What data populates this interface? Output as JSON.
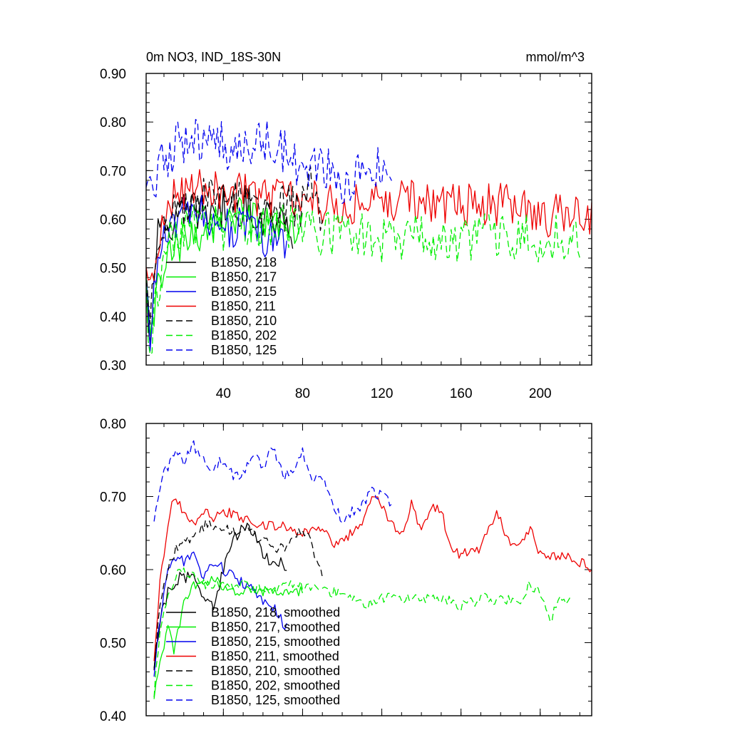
{
  "chart_data": [
    {
      "type": "line",
      "title": "0m NO3, IND_18S-30N",
      "units": "mmol/m^3",
      "xlim": [
        1,
        226
      ],
      "ylim": [
        0.3,
        0.9
      ],
      "xticks": [
        40,
        80,
        120,
        160,
        200
      ],
      "yticks": [
        0.3,
        0.4,
        0.5,
        0.6,
        0.7,
        0.8,
        0.9
      ],
      "ytick_labels": [
        "0.30",
        "0.40",
        "0.50",
        "0.60",
        "0.70",
        "0.80",
        "0.90"
      ],
      "legend_position": "lower-left",
      "series": [
        {
          "name": "B1850, 218",
          "color": "#000000",
          "dash": "solid",
          "length": 75,
          "anchors": [
            [
              1,
              0.47
            ],
            [
              3,
              0.35
            ],
            [
              6,
              0.55
            ],
            [
              10,
              0.58
            ],
            [
              15,
              0.6
            ],
            [
              20,
              0.61
            ],
            [
              30,
              0.62
            ],
            [
              40,
              0.62
            ],
            [
              50,
              0.63
            ],
            [
              60,
              0.61
            ],
            [
              70,
              0.6
            ],
            [
              75,
              0.58
            ]
          ],
          "noise": 0.045
        },
        {
          "name": "B1850, 217",
          "color": "#00ee00",
          "dash": "solid",
          "length": 80,
          "anchors": [
            [
              1,
              0.46
            ],
            [
              3,
              0.33
            ],
            [
              6,
              0.45
            ],
            [
              10,
              0.5
            ],
            [
              15,
              0.53
            ],
            [
              20,
              0.55
            ],
            [
              30,
              0.58
            ],
            [
              40,
              0.6
            ],
            [
              50,
              0.6
            ],
            [
              60,
              0.58
            ],
            [
              70,
              0.57
            ],
            [
              80,
              0.57
            ]
          ],
          "noise": 0.045
        },
        {
          "name": "B1850, 215",
          "color": "#0000ee",
          "dash": "solid",
          "length": 72,
          "anchors": [
            [
              1,
              0.46
            ],
            [
              3,
              0.35
            ],
            [
              6,
              0.5
            ],
            [
              10,
              0.55
            ],
            [
              15,
              0.6
            ],
            [
              20,
              0.6
            ],
            [
              30,
              0.61
            ],
            [
              40,
              0.59
            ],
            [
              50,
              0.58
            ],
            [
              60,
              0.56
            ],
            [
              72,
              0.55
            ]
          ],
          "noise": 0.045
        },
        {
          "name": "B1850, 211",
          "color": "#ee0000",
          "dash": "solid",
          "length": 226,
          "anchors": [
            [
              1,
              0.48
            ],
            [
              4,
              0.45
            ],
            [
              8,
              0.56
            ],
            [
              15,
              0.66
            ],
            [
              25,
              0.67
            ],
            [
              40,
              0.66
            ],
            [
              60,
              0.65
            ],
            [
              80,
              0.64
            ],
            [
              100,
              0.63
            ],
            [
              120,
              0.64
            ],
            [
              140,
              0.64
            ],
            [
              160,
              0.63
            ],
            [
              180,
              0.63
            ],
            [
              200,
              0.61
            ],
            [
              226,
              0.6
            ]
          ],
          "noise": 0.045
        },
        {
          "name": "B1850, 210",
          "color": "#000000",
          "dash": "dashed",
          "length": 90,
          "anchors": [
            [
              1,
              0.47
            ],
            [
              3,
              0.42
            ],
            [
              6,
              0.55
            ],
            [
              10,
              0.6
            ],
            [
              20,
              0.63
            ],
            [
              30,
              0.64
            ],
            [
              40,
              0.64
            ],
            [
              50,
              0.64
            ],
            [
              60,
              0.63
            ],
            [
              70,
              0.63
            ],
            [
              80,
              0.63
            ],
            [
              84,
              0.7
            ],
            [
              90,
              0.59
            ]
          ],
          "noise": 0.045
        },
        {
          "name": "B1850, 202",
          "color": "#00ee00",
          "dash": "dashed",
          "length": 220,
          "anchors": [
            [
              1,
              0.45
            ],
            [
              3,
              0.32
            ],
            [
              6,
              0.45
            ],
            [
              10,
              0.52
            ],
            [
              15,
              0.57
            ],
            [
              20,
              0.59
            ],
            [
              30,
              0.59
            ],
            [
              40,
              0.58
            ],
            [
              50,
              0.58
            ],
            [
              60,
              0.58
            ],
            [
              80,
              0.58
            ],
            [
              100,
              0.57
            ],
            [
              120,
              0.56
            ],
            [
              140,
              0.57
            ],
            [
              160,
              0.56
            ],
            [
              180,
              0.57
            ],
            [
              200,
              0.56
            ],
            [
              220,
              0.56
            ]
          ],
          "noise": 0.05
        },
        {
          "name": "B1850, 125",
          "color": "#0000ee",
          "dash": "dashed",
          "length": 125,
          "anchors": [
            [
              1,
              0.63
            ],
            [
              5,
              0.66
            ],
            [
              10,
              0.73
            ],
            [
              20,
              0.76
            ],
            [
              30,
              0.76
            ],
            [
              40,
              0.75
            ],
            [
              50,
              0.74
            ],
            [
              60,
              0.76
            ],
            [
              70,
              0.74
            ],
            [
              80,
              0.71
            ],
            [
              90,
              0.71
            ],
            [
              100,
              0.66
            ],
            [
              110,
              0.7
            ],
            [
              120,
              0.7
            ],
            [
              125,
              0.69
            ]
          ],
          "noise": 0.05
        }
      ]
    },
    {
      "type": "line",
      "title": "",
      "xlim": [
        1,
        226
      ],
      "ylim": [
        0.4,
        0.8
      ],
      "xticks": [
        40,
        80,
        120,
        160,
        200
      ],
      "yticks": [
        0.4,
        0.5,
        0.6,
        0.7,
        0.8
      ],
      "ytick_labels": [
        "0.40",
        "0.50",
        "0.60",
        "0.70",
        "0.80"
      ],
      "legend_position": "lower-left",
      "series": [
        {
          "name": "B1850, 218, smoothed",
          "color": "#000000",
          "dash": "solid",
          "length": 72,
          "anchors": [
            [
              5,
              0.47
            ],
            [
              8,
              0.53
            ],
            [
              12,
              0.57
            ],
            [
              18,
              0.59
            ],
            [
              25,
              0.59
            ],
            [
              30,
              0.56
            ],
            [
              35,
              0.55
            ],
            [
              40,
              0.6
            ],
            [
              45,
              0.64
            ],
            [
              50,
              0.66
            ],
            [
              55,
              0.65
            ],
            [
              60,
              0.62
            ],
            [
              65,
              0.61
            ],
            [
              70,
              0.61
            ],
            [
              72,
              0.6
            ]
          ],
          "noise": 0.008
        },
        {
          "name": "B1850, 217, smoothed",
          "color": "#00ee00",
          "dash": "solid",
          "length": 80,
          "anchors": [
            [
              5,
              0.43
            ],
            [
              8,
              0.47
            ],
            [
              12,
              0.52
            ],
            [
              15,
              0.49
            ],
            [
              20,
              0.55
            ],
            [
              25,
              0.58
            ],
            [
              30,
              0.58
            ],
            [
              35,
              0.59
            ],
            [
              40,
              0.57
            ],
            [
              50,
              0.57
            ],
            [
              60,
              0.57
            ],
            [
              70,
              0.57
            ],
            [
              80,
              0.57
            ]
          ],
          "noise": 0.008
        },
        {
          "name": "B1850, 215, smoothed",
          "color": "#0000ee",
          "dash": "solid",
          "length": 72,
          "anchors": [
            [
              5,
              0.46
            ],
            [
              8,
              0.53
            ],
            [
              12,
              0.6
            ],
            [
              15,
              0.62
            ],
            [
              20,
              0.61
            ],
            [
              25,
              0.62
            ],
            [
              30,
              0.59
            ],
            [
              35,
              0.61
            ],
            [
              40,
              0.6
            ],
            [
              50,
              0.58
            ],
            [
              60,
              0.56
            ],
            [
              65,
              0.55
            ],
            [
              72,
              0.52
            ]
          ],
          "noise": 0.008
        },
        {
          "name": "B1850, 211, smoothed",
          "color": "#ee0000",
          "dash": "solid",
          "length": 226,
          "anchors": [
            [
              5,
              0.48
            ],
            [
              8,
              0.58
            ],
            [
              12,
              0.66
            ],
            [
              15,
              0.7
            ],
            [
              20,
              0.68
            ],
            [
              25,
              0.66
            ],
            [
              30,
              0.68
            ],
            [
              35,
              0.67
            ],
            [
              40,
              0.68
            ],
            [
              50,
              0.67
            ],
            [
              60,
              0.66
            ],
            [
              70,
              0.66
            ],
            [
              80,
              0.65
            ],
            [
              90,
              0.66
            ],
            [
              95,
              0.63
            ],
            [
              100,
              0.64
            ],
            [
              110,
              0.66
            ],
            [
              115,
              0.7
            ],
            [
              120,
              0.69
            ],
            [
              125,
              0.66
            ],
            [
              130,
              0.65
            ],
            [
              135,
              0.69
            ],
            [
              140,
              0.65
            ],
            [
              145,
              0.69
            ],
            [
              150,
              0.68
            ],
            [
              155,
              0.63
            ],
            [
              160,
              0.62
            ],
            [
              170,
              0.63
            ],
            [
              178,
              0.68
            ],
            [
              185,
              0.63
            ],
            [
              190,
              0.63
            ],
            [
              195,
              0.66
            ],
            [
              200,
              0.62
            ],
            [
              210,
              0.62
            ],
            [
              220,
              0.61
            ],
            [
              226,
              0.6
            ]
          ],
          "noise": 0.007
        },
        {
          "name": "B1850, 210, smoothed",
          "color": "#000000",
          "dash": "dashed",
          "length": 90,
          "anchors": [
            [
              5,
              0.47
            ],
            [
              8,
              0.55
            ],
            [
              12,
              0.6
            ],
            [
              18,
              0.64
            ],
            [
              25,
              0.64
            ],
            [
              30,
              0.66
            ],
            [
              35,
              0.66
            ],
            [
              40,
              0.66
            ],
            [
              45,
              0.65
            ],
            [
              50,
              0.66
            ],
            [
              55,
              0.65
            ],
            [
              60,
              0.64
            ],
            [
              65,
              0.63
            ],
            [
              70,
              0.63
            ],
            [
              75,
              0.64
            ],
            [
              80,
              0.66
            ],
            [
              85,
              0.63
            ],
            [
              90,
              0.59
            ]
          ],
          "noise": 0.008
        },
        {
          "name": "B1850, 202, smoothed",
          "color": "#00ee00",
          "dash": "dashed",
          "length": 215,
          "anchors": [
            [
              5,
              0.43
            ],
            [
              8,
              0.52
            ],
            [
              12,
              0.57
            ],
            [
              18,
              0.6
            ],
            [
              25,
              0.59
            ],
            [
              30,
              0.58
            ],
            [
              40,
              0.58
            ],
            [
              50,
              0.58
            ],
            [
              60,
              0.57
            ],
            [
              70,
              0.58
            ],
            [
              80,
              0.58
            ],
            [
              90,
              0.57
            ],
            [
              100,
              0.57
            ],
            [
              110,
              0.55
            ],
            [
              120,
              0.56
            ],
            [
              130,
              0.56
            ],
            [
              140,
              0.56
            ],
            [
              150,
              0.56
            ],
            [
              160,
              0.55
            ],
            [
              170,
              0.56
            ],
            [
              180,
              0.56
            ],
            [
              190,
              0.56
            ],
            [
              195,
              0.58
            ],
            [
              200,
              0.57
            ],
            [
              205,
              0.53
            ],
            [
              210,
              0.56
            ],
            [
              215,
              0.56
            ]
          ],
          "noise": 0.008
        },
        {
          "name": "B1850, 125, smoothed",
          "color": "#0000ee",
          "dash": "dashed",
          "length": 125,
          "anchors": [
            [
              5,
              0.67
            ],
            [
              10,
              0.73
            ],
            [
              15,
              0.76
            ],
            [
              20,
              0.75
            ],
            [
              25,
              0.77
            ],
            [
              30,
              0.75
            ],
            [
              35,
              0.74
            ],
            [
              40,
              0.75
            ],
            [
              45,
              0.73
            ],
            [
              50,
              0.73
            ],
            [
              55,
              0.76
            ],
            [
              60,
              0.74
            ],
            [
              65,
              0.77
            ],
            [
              70,
              0.73
            ],
            [
              75,
              0.73
            ],
            [
              80,
              0.76
            ],
            [
              85,
              0.72
            ],
            [
              90,
              0.73
            ],
            [
              95,
              0.69
            ],
            [
              100,
              0.67
            ],
            [
              105,
              0.68
            ],
            [
              110,
              0.69
            ],
            [
              115,
              0.71
            ],
            [
              120,
              0.7
            ],
            [
              125,
              0.69
            ]
          ],
          "noise": 0.008
        }
      ]
    }
  ]
}
